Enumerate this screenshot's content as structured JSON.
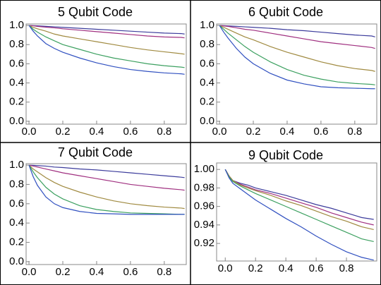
{
  "chart_data": [
    {
      "type": "line",
      "title": "5 Qubit Code",
      "x": [
        0,
        0.025,
        0.05,
        0.1,
        0.15,
        0.2,
        0.3,
        0.4,
        0.5,
        0.6,
        0.7,
        0.8,
        0.9,
        0.92
      ],
      "xlim": [
        -0.017,
        0.93
      ],
      "ylim": [
        -0.03,
        1.015
      ],
      "xticks": [
        {
          "value": 0,
          "label": "0.0"
        },
        0.2,
        0.4,
        0.6,
        0.8
      ],
      "yticks": [
        {
          "value": 0,
          "label": "0.0"
        },
        0.2,
        0.4,
        0.6,
        0.8,
        {
          "value": 1,
          "label": "1.0"
        }
      ],
      "series": [
        {
          "color": "#3c3c9c",
          "values": [
            1,
            0.998,
            0.996,
            0.99,
            0.985,
            0.98,
            0.97,
            0.96,
            0.95,
            0.94,
            0.93,
            0.92,
            0.915,
            0.91
          ]
        },
        {
          "color": "#a03080",
          "values": [
            1,
            0.996,
            0.99,
            0.982,
            0.975,
            0.965,
            0.95,
            0.935,
            0.92,
            0.905,
            0.89,
            0.88,
            0.875,
            0.87
          ]
        },
        {
          "color": "#a08a40",
          "values": [
            1,
            0.98,
            0.965,
            0.94,
            0.91,
            0.89,
            0.86,
            0.83,
            0.8,
            0.77,
            0.745,
            0.725,
            0.705,
            0.7
          ]
        },
        {
          "color": "#3ca060",
          "values": [
            1,
            0.96,
            0.93,
            0.88,
            0.84,
            0.8,
            0.75,
            0.7,
            0.66,
            0.63,
            0.6,
            0.58,
            0.565,
            0.56
          ]
        },
        {
          "color": "#3050c0",
          "values": [
            1,
            0.94,
            0.89,
            0.81,
            0.76,
            0.72,
            0.66,
            0.61,
            0.57,
            0.54,
            0.52,
            0.505,
            0.495,
            0.49
          ]
        }
      ]
    },
    {
      "type": "line",
      "title": "6 Qubit Code",
      "x": [
        0,
        0.025,
        0.05,
        0.1,
        0.15,
        0.2,
        0.3,
        0.4,
        0.5,
        0.6,
        0.7,
        0.8,
        0.9,
        0.92
      ],
      "xlim": [
        -0.017,
        0.93
      ],
      "ylim": [
        -0.03,
        1.015
      ],
      "xticks": [
        {
          "value": 0,
          "label": "0.0"
        },
        0.2,
        0.4,
        0.6,
        0.8
      ],
      "yticks": [
        {
          "value": 0,
          "label": "0.0"
        },
        0.2,
        0.4,
        0.6,
        0.8,
        {
          "value": 1,
          "label": "1.0"
        }
      ],
      "series": [
        {
          "color": "#3c3c9c",
          "values": [
            1,
            0.998,
            0.995,
            0.99,
            0.985,
            0.98,
            0.97,
            0.955,
            0.945,
            0.93,
            0.915,
            0.9,
            0.89,
            0.88
          ]
        },
        {
          "color": "#a03080",
          "values": [
            1,
            0.995,
            0.99,
            0.975,
            0.96,
            0.95,
            0.92,
            0.89,
            0.86,
            0.83,
            0.81,
            0.79,
            0.77,
            0.76
          ]
        },
        {
          "color": "#a08a40",
          "values": [
            1,
            0.98,
            0.96,
            0.92,
            0.88,
            0.85,
            0.78,
            0.72,
            0.67,
            0.62,
            0.58,
            0.55,
            0.53,
            0.52
          ]
        },
        {
          "color": "#3ca060",
          "values": [
            1,
            0.96,
            0.92,
            0.85,
            0.78,
            0.72,
            0.62,
            0.54,
            0.48,
            0.44,
            0.41,
            0.395,
            0.385,
            0.38
          ]
        },
        {
          "color": "#3050c0",
          "values": [
            1,
            0.93,
            0.87,
            0.76,
            0.67,
            0.6,
            0.5,
            0.43,
            0.39,
            0.36,
            0.35,
            0.345,
            0.34,
            0.34
          ]
        }
      ]
    },
    {
      "type": "line",
      "title": "7 Qubit Code",
      "x": [
        0,
        0.025,
        0.05,
        0.1,
        0.15,
        0.2,
        0.3,
        0.4,
        0.5,
        0.6,
        0.7,
        0.8,
        0.9,
        0.92
      ],
      "xlim": [
        -0.017,
        0.93
      ],
      "ylim": [
        -0.03,
        1.015
      ],
      "xticks": [
        {
          "value": 0,
          "label": "0.0"
        },
        0.2,
        0.4,
        0.6,
        0.8
      ],
      "yticks": [
        {
          "value": 0,
          "label": "0.0"
        },
        0.2,
        0.4,
        0.6,
        0.8,
        {
          "value": 1,
          "label": "1.0"
        }
      ],
      "series": [
        {
          "color": "#3c3c9c",
          "values": [
            1,
            0.998,
            0.995,
            0.99,
            0.98,
            0.975,
            0.96,
            0.95,
            0.935,
            0.92,
            0.905,
            0.89,
            0.875,
            0.87
          ]
        },
        {
          "color": "#a03080",
          "values": [
            1,
            0.99,
            0.98,
            0.96,
            0.94,
            0.92,
            0.89,
            0.86,
            0.83,
            0.8,
            0.78,
            0.76,
            0.745,
            0.74
          ]
        },
        {
          "color": "#a08a40",
          "values": [
            1,
            0.96,
            0.93,
            0.87,
            0.82,
            0.78,
            0.72,
            0.67,
            0.63,
            0.6,
            0.58,
            0.565,
            0.555,
            0.55
          ]
        },
        {
          "color": "#3ca060",
          "values": [
            1,
            0.93,
            0.87,
            0.77,
            0.7,
            0.65,
            0.58,
            0.54,
            0.52,
            0.505,
            0.5,
            0.495,
            0.49,
            0.49
          ]
        },
        {
          "color": "#3050c0",
          "values": [
            1,
            0.88,
            0.79,
            0.67,
            0.6,
            0.56,
            0.52,
            0.5,
            0.495,
            0.49,
            0.49,
            0.49,
            0.49,
            0.49
          ]
        }
      ]
    },
    {
      "type": "line",
      "title": "9 Qubit Code",
      "x": [
        0,
        0.025,
        0.05,
        0.1,
        0.15,
        0.2,
        0.3,
        0.4,
        0.5,
        0.6,
        0.7,
        0.8,
        0.9,
        0.98
      ],
      "xlim": [
        -0.057,
        1.0
      ],
      "ylim": [
        0.901,
        1.007
      ],
      "xticks": [
        {
          "value": 0,
          "label": "0.0"
        },
        0.2,
        0.4,
        0.6,
        0.8
      ],
      "yticks": [
        0.92,
        0.94,
        0.96,
        0.98,
        {
          "value": 1,
          "label": "1.00"
        }
      ],
      "series": [
        {
          "color": "#3c3c9c",
          "values": [
            1,
            0.993,
            0.988,
            0.985,
            0.983,
            0.98,
            0.976,
            0.972,
            0.967,
            0.962,
            0.958,
            0.953,
            0.948,
            0.946
          ]
        },
        {
          "color": "#a03080",
          "values": [
            1,
            0.993,
            0.988,
            0.984,
            0.981,
            0.978,
            0.974,
            0.969,
            0.964,
            0.959,
            0.953,
            0.948,
            0.943,
            0.94
          ]
        },
        {
          "color": "#a08a40",
          "values": [
            1,
            0.993,
            0.988,
            0.983,
            0.98,
            0.977,
            0.972,
            0.966,
            0.961,
            0.955,
            0.949,
            0.944,
            0.938,
            0.935
          ]
        },
        {
          "color": "#3ca060",
          "values": [
            1,
            0.992,
            0.987,
            0.982,
            0.978,
            0.974,
            0.967,
            0.96,
            0.953,
            0.946,
            0.939,
            0.932,
            0.925,
            0.922
          ]
        },
        {
          "color": "#3050c0",
          "values": [
            1,
            0.991,
            0.985,
            0.979,
            0.973,
            0.967,
            0.957,
            0.947,
            0.938,
            0.928,
            0.919,
            0.911,
            0.905,
            0.902
          ]
        }
      ]
    }
  ]
}
